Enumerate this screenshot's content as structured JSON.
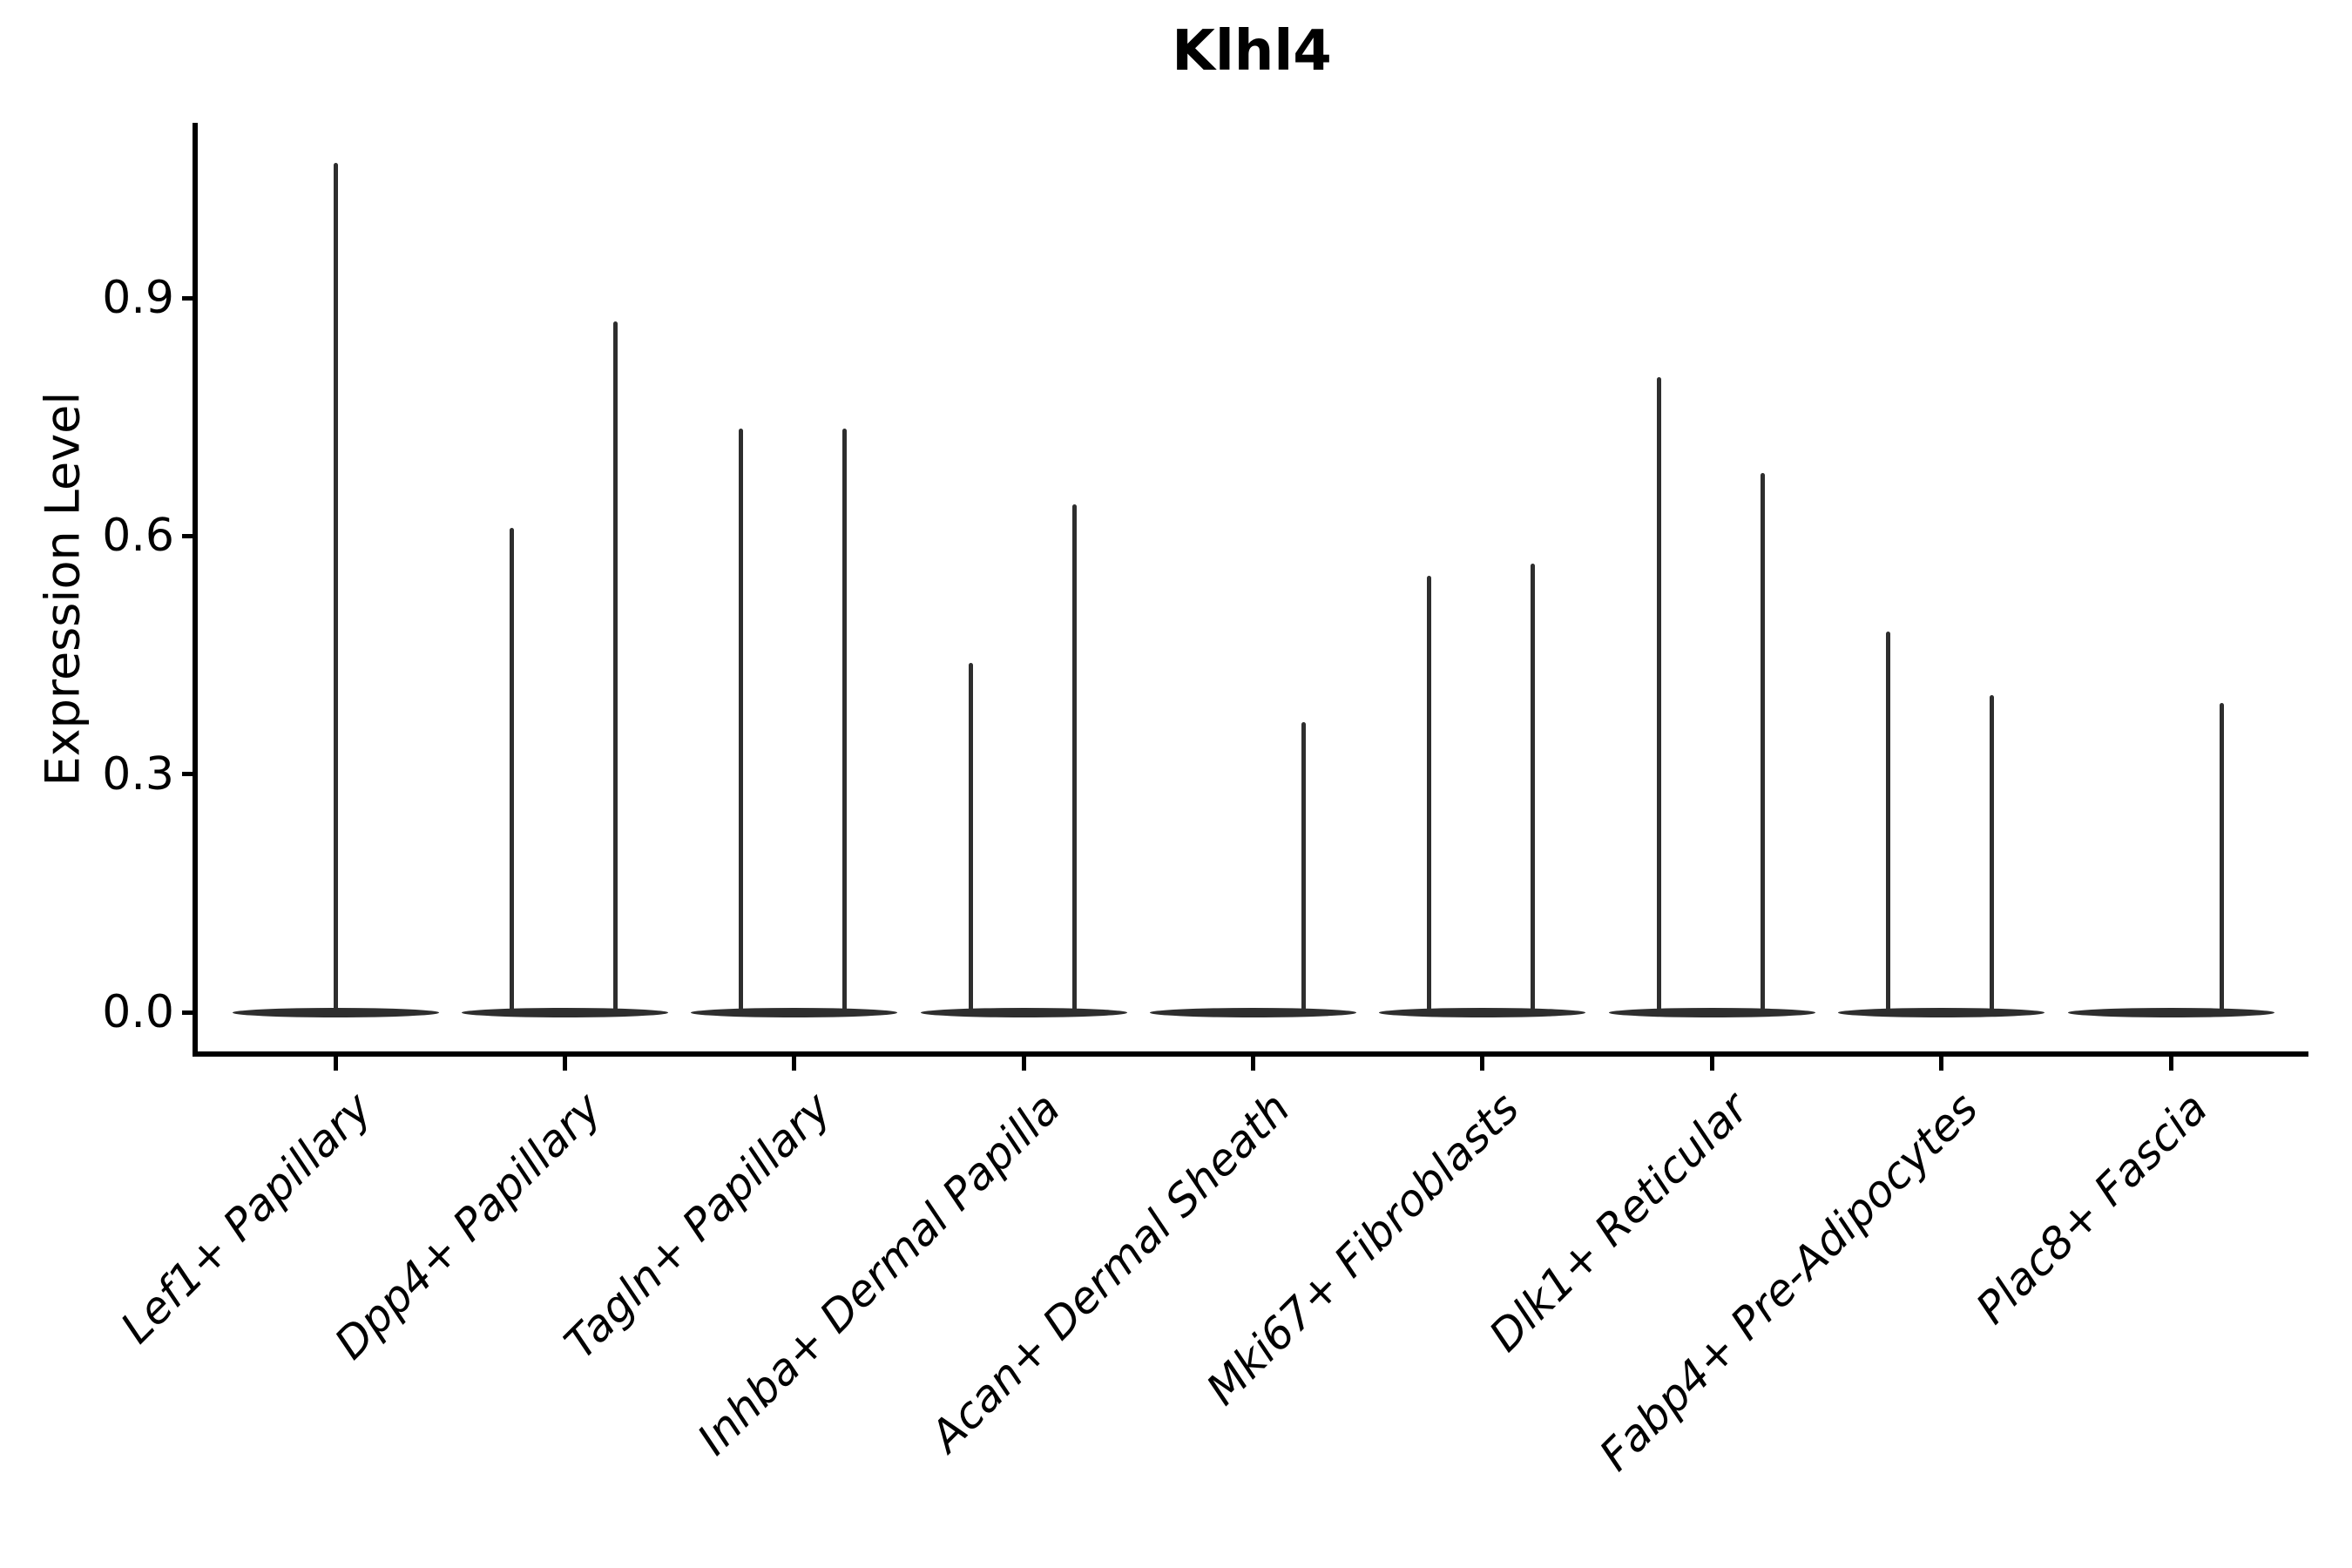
{
  "chart_data": {
    "type": "violin",
    "title": "Klhl4",
    "xlabel": "",
    "ylabel": "Expression Level",
    "yticks": [
      0.0,
      0.3,
      0.6,
      0.9
    ],
    "ylim": [
      -0.053,
      1.122
    ],
    "grid": false,
    "legend": "none",
    "categories": [
      "Lef1+ Papillary",
      "Dpp4+ Papillary",
      "Tagln+ Papillary",
      "Inhba+ Dermal Papilla",
      "Acan+ Dermal Sheath",
      "Mki67+ Fibroblasts",
      "Dlk1+ Reticular",
      "Fabp4+ Pre-Adipocytes",
      "Plac8+ Fascia"
    ],
    "violins": [
      {
        "category": "Lef1+ Papillary",
        "baseline_value": 0.0,
        "spikes": [
          {
            "position": "center",
            "max_expression": 1.07
          }
        ]
      },
      {
        "category": "Dpp4+ Papillary",
        "baseline_value": 0.0,
        "spikes": [
          {
            "position": "left",
            "max_expression": 0.61
          },
          {
            "position": "right",
            "max_expression": 0.87
          }
        ]
      },
      {
        "category": "Tagln+ Papillary",
        "baseline_value": 0.0,
        "spikes": [
          {
            "position": "left",
            "max_expression": 0.735
          },
          {
            "position": "right",
            "max_expression": 0.735
          }
        ]
      },
      {
        "category": "Inhba+ Dermal Papilla",
        "baseline_value": 0.0,
        "spikes": [
          {
            "position": "left",
            "max_expression": 0.44
          },
          {
            "position": "right",
            "max_expression": 0.64
          }
        ]
      },
      {
        "category": "Acan+ Dermal Sheath",
        "baseline_value": 0.0,
        "spikes": [
          {
            "position": "right",
            "max_expression": 0.365
          }
        ]
      },
      {
        "category": "Mki67+ Fibroblasts",
        "baseline_value": 0.0,
        "spikes": [
          {
            "position": "left",
            "max_expression": 0.55
          },
          {
            "position": "right",
            "max_expression": 0.565
          }
        ]
      },
      {
        "category": "Dlk1+ Reticular",
        "baseline_value": 0.0,
        "spikes": [
          {
            "position": "left",
            "max_expression": 0.8
          },
          {
            "position": "right",
            "max_expression": 0.68
          }
        ]
      },
      {
        "category": "Fabp4+ Pre-Adipocytes",
        "baseline_value": 0.0,
        "spikes": [
          {
            "position": "left",
            "max_expression": 0.48
          },
          {
            "position": "right",
            "max_expression": 0.4
          }
        ]
      },
      {
        "category": "Plac8+ Fascia",
        "baseline_value": 0.0,
        "spikes": [
          {
            "position": "right",
            "max_expression": 0.39
          }
        ]
      }
    ],
    "colors": {
      "violin": "#2e2e2e",
      "axis": "#000000",
      "background": "#ffffff",
      "text": "#000000"
    },
    "note": "Expression density is concentrated at 0 in every cluster (flat violin bases); thin spikes extend to the maximum expression value."
  }
}
